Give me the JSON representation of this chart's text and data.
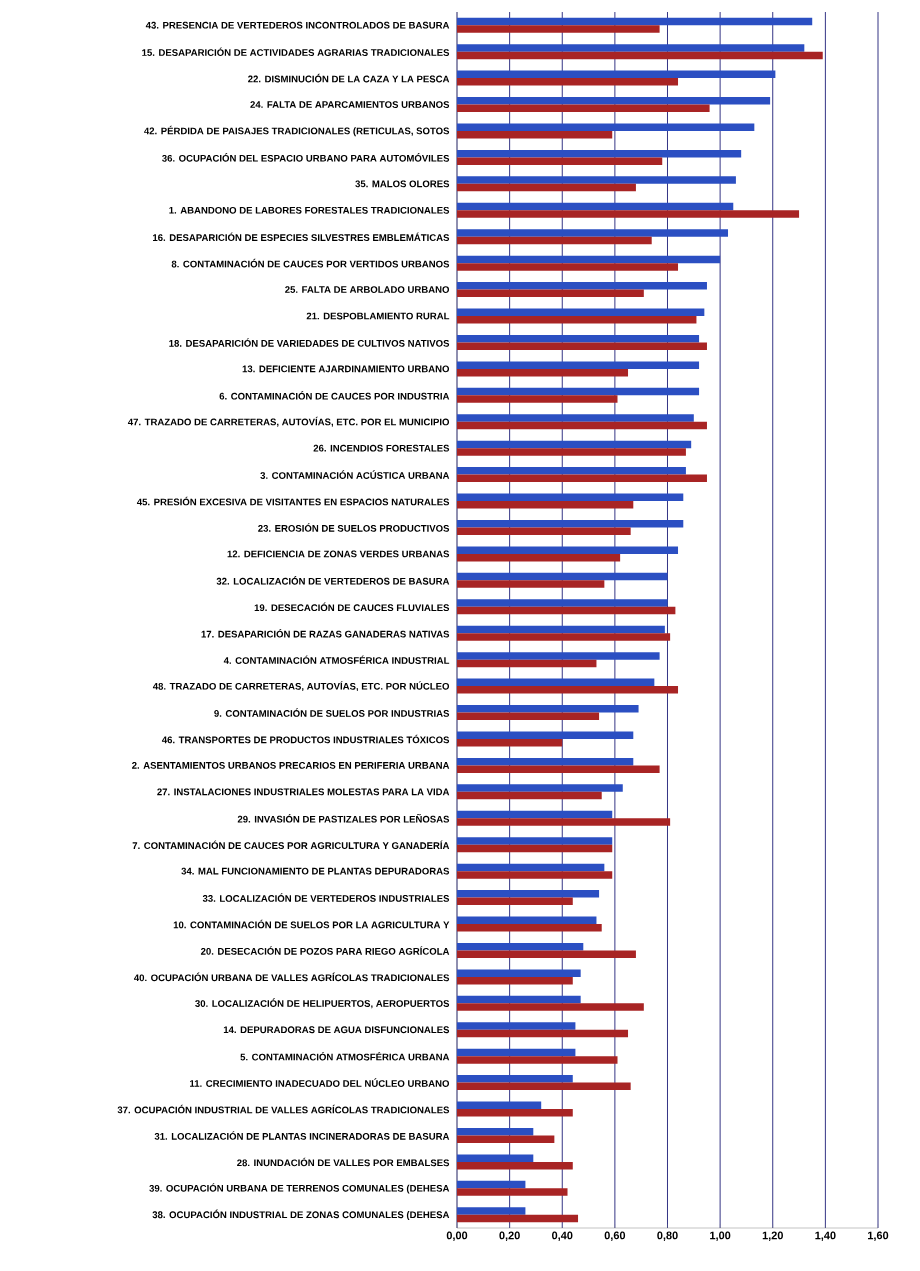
{
  "chart_data": {
    "type": "bar",
    "orientation": "horizontal",
    "grid": "x",
    "xlim": [
      0,
      1.6
    ],
    "xticks": [
      {
        "value": 0,
        "label": "0,00"
      },
      {
        "value": 0.2,
        "label": "0,20"
      },
      {
        "value": 0.4,
        "label": "0,40"
      },
      {
        "value": 0.6,
        "label": "0,60"
      },
      {
        "value": 0.8,
        "label": "0,80"
      },
      {
        "value": 1.0,
        "label": "1,00"
      },
      {
        "value": 1.2,
        "label": "1,20"
      },
      {
        "value": 1.4,
        "label": "1,40"
      },
      {
        "value": 1.6,
        "label": "1,60"
      }
    ],
    "categories": [
      "43. PRESENCIA DE VERTEDEROS INCONTROLADOS DE BASURA",
      "15. DESAPARICIÓN DE ACTIVIDADES AGRARIAS TRADICIONALES",
      "22. DISMINUCIÓN DE LA CAZA Y LA PESCA",
      "24. FALTA DE APARCAMIENTOS URBANOS",
      "42. PÉRDIDA DE PAISAJES TRADICIONALES (RETICULAS, SOTOS",
      "36. OCUPACIÓN DEL ESPACIO URBANO PARA AUTOMÓVILES",
      "35. MALOS OLORES",
      "1. ABANDONO DE LABORES FORESTALES TRADICIONALES",
      "16. DESAPARICIÓN DE ESPECIES SILVESTRES EMBLEMÁTICAS",
      "8. CONTAMINACIÓN DE CAUCES POR VERTIDOS URBANOS",
      "25. FALTA DE ARBOLADO URBANO",
      "21. DESPOBLAMIENTO RURAL",
      "18. DESAPARICIÓN DE VARIEDADES DE CULTIVOS NATIVOS",
      "13. DEFICIENTE AJARDINAMIENTO URBANO",
      "6. CONTAMINACIÓN DE CAUCES POR INDUSTRIA",
      "47. TRAZADO DE CARRETERAS, AUTOVÍAS, ETC. POR EL MUNICIPIO",
      "26. INCENDIOS FORESTALES",
      "3. CONTAMINACIÓN ACÚSTICA URBANA",
      "45. PRESIÓN EXCESIVA DE VISITANTES EN ESPACIOS NATURALES",
      "23. EROSIÓN DE SUELOS PRODUCTIVOS",
      "12. DEFICIENCIA DE ZONAS VERDES URBANAS",
      "32. LOCALIZACIÓN DE VERTEDEROS DE BASURA",
      "19. DESECACIÓN DE CAUCES FLUVIALES",
      "17. DESAPARICIÓN DE RAZAS GANADERAS NATIVAS",
      "4. CONTAMINACIÓN ATMOSFÉRICA INDUSTRIAL",
      "48. TRAZADO DE CARRETERAS, AUTOVÍAS, ETC. POR NÚCLEO",
      "9. CONTAMINACIÓN DE SUELOS POR INDUSTRIAS",
      "46. TRANSPORTES DE PRODUCTOS INDUSTRIALES TÓXICOS",
      "2. ASENTAMIENTOS URBANOS PRECARIOS EN PERIFERIA URBANA",
      "27. INSTALACIONES INDUSTRIALES MOLESTAS PARA LA VIDA",
      "29. INVASIÓN DE PASTIZALES POR LEÑOSAS",
      "7. CONTAMINACIÓN DE CAUCES POR AGRICULTURA Y GANADERÍA",
      "34. MAL FUNCIONAMIENTO DE PLANTAS DEPURADORAS",
      "33. LOCALIZACIÓN DE VERTEDEROS INDUSTRIALES",
      "10. CONTAMINACIÓN DE SUELOS POR LA AGRICULTURA Y",
      "20. DESECACIÓN DE POZOS PARA RIEGO AGRÍCOLA",
      "40. OCUPACIÓN URBANA DE VALLES AGRÍCOLAS TRADICIONALES",
      "30. LOCALIZACIÓN DE HELIPUERTOS, AEROPUERTOS",
      "14. DEPURADORAS DE AGUA DISFUNCIONALES",
      "5. CONTAMINACIÓN ATMOSFÉRICA URBANA",
      "11. CRECIMIENTO INADECUADO DEL NÚCLEO URBANO",
      "37. OCUPACIÓN INDUSTRIAL DE VALLES AGRÍCOLAS TRADICIONALES",
      "31. LOCALIZACIÓN DE PLANTAS INCINERADORAS DE BASURA",
      "28. INUNDACIÓN DE VALLES POR EMBALSES",
      "39. OCUPACIÓN URBANA DE TERRENOS COMUNALES (DEHESA",
      "38. OCUPACIÓN INDUSTRIAL DE ZONAS COMUNALES (DEHESA"
    ],
    "series": [
      {
        "color": "#2b4fc2",
        "values": [
          1.35,
          1.32,
          1.21,
          1.19,
          1.13,
          1.08,
          1.06,
          1.05,
          1.03,
          1.0,
          0.95,
          0.94,
          0.92,
          0.92,
          0.92,
          0.9,
          0.89,
          0.87,
          0.86,
          0.86,
          0.84,
          0.8,
          0.8,
          0.79,
          0.77,
          0.75,
          0.69,
          0.67,
          0.67,
          0.63,
          0.59,
          0.59,
          0.56,
          0.54,
          0.53,
          0.48,
          0.47,
          0.47,
          0.45,
          0.45,
          0.44,
          0.32,
          0.29,
          0.29,
          0.26,
          0.26
        ]
      },
      {
        "color": "#a82424",
        "values": [
          0.77,
          1.39,
          0.84,
          0.96,
          0.59,
          0.78,
          0.68,
          1.3,
          0.74,
          0.84,
          0.71,
          0.91,
          0.95,
          0.65,
          0.61,
          0.95,
          0.87,
          0.95,
          0.67,
          0.66,
          0.62,
          0.56,
          0.83,
          0.81,
          0.53,
          0.84,
          0.54,
          0.4,
          0.77,
          0.55,
          0.81,
          0.59,
          0.59,
          0.44,
          0.55,
          0.68,
          0.44,
          0.71,
          0.65,
          0.61,
          0.66,
          0.44,
          0.37,
          0.44,
          0.42,
          0.46
        ]
      }
    ]
  }
}
